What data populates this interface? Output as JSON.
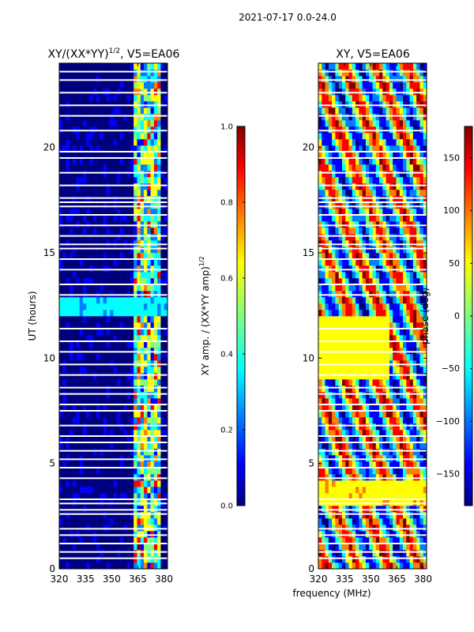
{
  "suptitle": "2021-07-17 0.0-24.0",
  "colors": {
    "jet": [
      "#00007f",
      "#0000ff",
      "#007fff",
      "#00ffff",
      "#7fff7f",
      "#ffff00",
      "#ff7f00",
      "#ff0000",
      "#7f0000"
    ],
    "flag": "#ffffff"
  },
  "chart_data": [
    {
      "type": "heatmap",
      "title": "XY/(XX*YY)",
      "title_exp": "1/2",
      "title_suffix": ", V5=EA06",
      "xlabel": "",
      "ylabel": "UT (hours)",
      "xlim": [
        320,
        382
      ],
      "ylim": [
        0,
        24
      ],
      "xticks": [
        320,
        335,
        350,
        365,
        380
      ],
      "yticks": [
        0,
        5,
        10,
        15,
        20
      ],
      "colorbar": {
        "label": "XY amp. / (XX*YY amp)",
        "label_exp": "1/2",
        "range": [
          0.0,
          1.0
        ],
        "ticks": [
          "0.0",
          "0.2",
          "0.4",
          "0.6",
          "0.8",
          "1.0"
        ],
        "tick_values": [
          0.0,
          0.2,
          0.4,
          0.6,
          0.8,
          1.0
        ]
      },
      "flagged_hours": [
        0.5,
        0.8,
        1.2,
        1.6,
        1.9,
        2.6,
        2.8,
        3.1,
        3.3,
        4.3,
        4.8,
        5.2,
        5.6,
        6.0,
        6.3,
        6.8,
        7.5,
        7.8,
        8.3,
        8.6,
        9.2,
        9.7,
        10.3,
        10.8,
        11.4,
        13.0,
        13.5,
        14.2,
        14.7,
        15.2,
        15.4,
        15.8,
        16.3,
        16.8,
        17.2,
        17.4,
        17.6,
        18.2,
        18.8,
        19.5,
        19.8,
        20.8,
        21.5,
        22.0,
        22.6,
        23.2,
        23.6
      ],
      "summary": {
        "channels_320_362": "amplitude near 0.0",
        "channels_363_378": "amplitude 0.2-0.9 with bright blocks",
        "hours_12_12.8": "amplitude about 0.3 across band"
      }
    },
    {
      "type": "heatmap",
      "title": "XY, V5=EA06",
      "xlabel": "frequency (MHz)",
      "ylabel": "",
      "xlim": [
        320,
        382
      ],
      "ylim": [
        0,
        24
      ],
      "xticks": [
        320,
        335,
        350,
        365,
        380
      ],
      "yticks": [
        0,
        5,
        10,
        15,
        20
      ],
      "colorbar": {
        "label": "phase (deg)",
        "range": [
          -180,
          180
        ],
        "ticks": [
          "150",
          "100",
          "50",
          "0",
          "−50",
          "−100",
          "−150"
        ],
        "tick_values": [
          150,
          100,
          50,
          0,
          -50,
          -100,
          -150
        ]
      },
      "flagged_hours": [
        0.5,
        0.8,
        1.2,
        1.6,
        1.9,
        2.6,
        2.8,
        3.1,
        3.3,
        4.3,
        4.8,
        5.2,
        5.6,
        6.0,
        6.3,
        6.8,
        7.5,
        7.8,
        8.3,
        8.6,
        9.2,
        9.7,
        10.3,
        10.8,
        11.4,
        13.0,
        13.5,
        14.2,
        14.7,
        15.2,
        15.4,
        15.8,
        16.3,
        16.8,
        17.2,
        17.4,
        17.6,
        18.2,
        18.8,
        19.5,
        19.8,
        20.8,
        21.5,
        22.0,
        22.6,
        23.2,
        23.6
      ],
      "summary": {
        "hours_9_12": "phase about +40 deg (yellow-orange)",
        "hours_3_4": "phase about +50 deg",
        "other": "mixed phases across band"
      }
    }
  ]
}
